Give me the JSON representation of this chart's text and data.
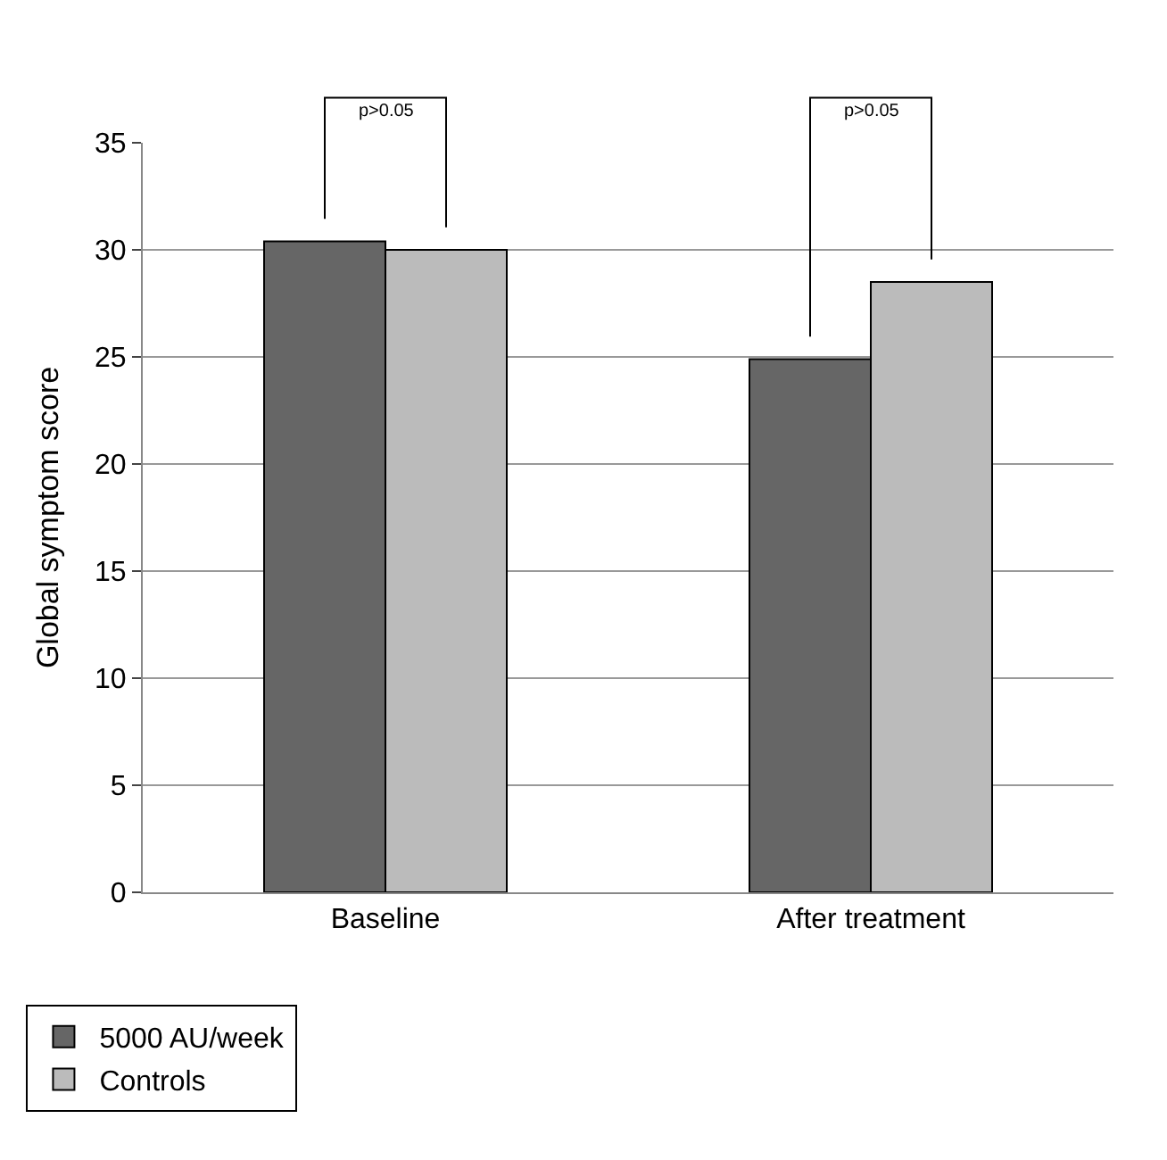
{
  "chart_data": {
    "type": "bar",
    "ylabel": "Global symptom score",
    "categories": [
      "Baseline",
      "After treatment"
    ],
    "series": [
      {
        "name": "5000 AU/week",
        "color": "#666666",
        "values": [
          30.4,
          24.9
        ]
      },
      {
        "name": "Controls",
        "color": "#bbbbbb",
        "values": [
          30.0,
          28.5
        ]
      }
    ],
    "ylim": [
      0,
      35
    ],
    "yticks": [
      0,
      5,
      10,
      15,
      20,
      25,
      30,
      35
    ],
    "grid": "y",
    "legend": "bottom left",
    "annotations": [
      "p>0.05",
      "p>0.05"
    ]
  }
}
